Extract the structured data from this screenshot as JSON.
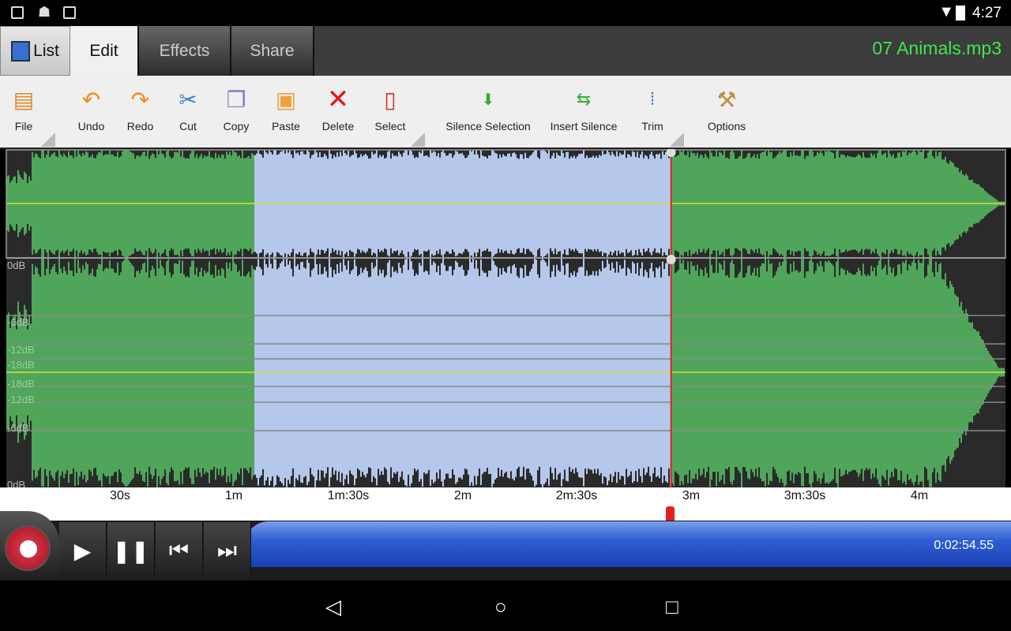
{
  "status_bar": {
    "time": "4:27",
    "icons": [
      "image-icon",
      "android-icon",
      "clipboard-check-icon",
      "wifi-icon",
      "battery-charging-icon"
    ]
  },
  "tabs": [
    {
      "label": "List",
      "active": false
    },
    {
      "label": "Edit",
      "active": true
    },
    {
      "label": "Effects",
      "active": false
    },
    {
      "label": "Share",
      "active": false
    }
  ],
  "file_name": "07 Animals.mp3",
  "toolbar": [
    {
      "label": "File",
      "icon": "file-icon",
      "has_menu": true
    },
    {
      "label": "Undo",
      "icon": "undo-icon"
    },
    {
      "label": "Redo",
      "icon": "redo-icon"
    },
    {
      "label": "Cut",
      "icon": "scissors-icon"
    },
    {
      "label": "Copy",
      "icon": "copy-icon"
    },
    {
      "label": "Paste",
      "icon": "paste-icon"
    },
    {
      "label": "Delete",
      "icon": "delete-x-icon"
    },
    {
      "label": "Select",
      "icon": "select-icon",
      "has_menu": true
    },
    {
      "label": "Silence Selection",
      "icon": "silence-icon"
    },
    {
      "label": "Insert Silence",
      "icon": "insert-silence-icon"
    },
    {
      "label": "Trim",
      "icon": "trim-icon",
      "has_menu": true
    },
    {
      "label": "Options",
      "icon": "options-icon"
    }
  ],
  "waveform": {
    "db_labels_top": [
      "0dB",
      "-6dB",
      "-12dB",
      "-18dB"
    ],
    "db_labels_bottom": [
      "-18dB",
      "-12dB",
      "-6dB",
      "0dB"
    ],
    "selection_start_seconds": 65,
    "selection_end_seconds": 174.55,
    "colors": {
      "wave": "#4fa65a",
      "selection": "#b5c7ea",
      "playhead": "#e02020",
      "center_line": "#d8e030"
    }
  },
  "timeline": {
    "labels": [
      "30s",
      "1m",
      "1m:30s",
      "2m",
      "2m:30s",
      "3m",
      "3m:30s",
      "4m"
    ]
  },
  "transport": {
    "time": "0:02:54.55",
    "buttons": [
      "record",
      "play",
      "pause",
      "skip-to-start",
      "skip-to-end"
    ]
  },
  "navbar": {
    "buttons": [
      "back",
      "home",
      "recents"
    ]
  }
}
